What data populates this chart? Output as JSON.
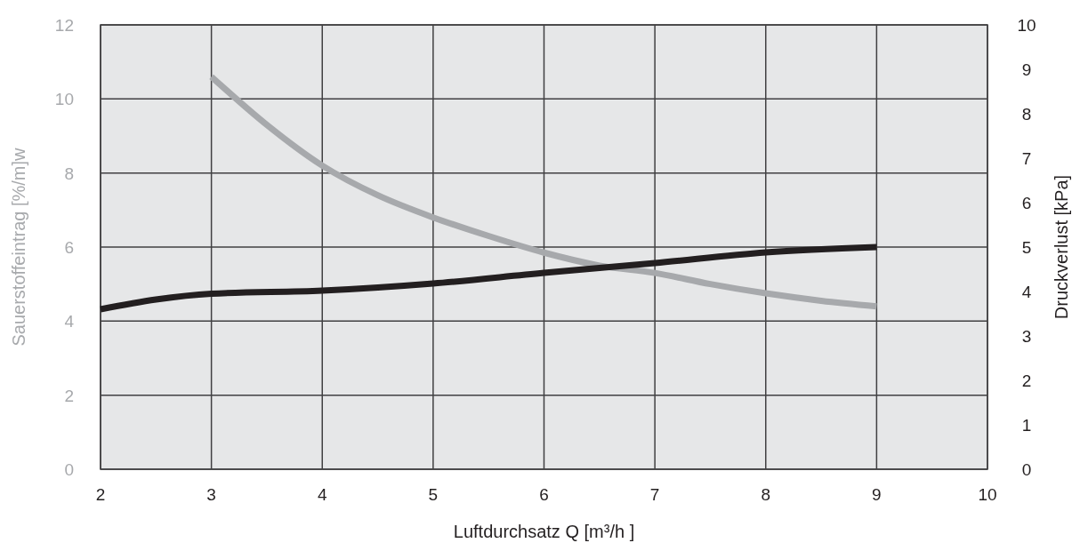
{
  "chart_data": {
    "type": "line",
    "xlabel": "Luftdurchsatz Q [m³/h ]",
    "ylabel": "Sauerstoffeintrag [%/m]w",
    "y2label": "Druckverlust [kPa]",
    "xlim": [
      2,
      10
    ],
    "xticks": [
      2,
      3,
      4,
      5,
      6,
      7,
      8,
      9,
      10
    ],
    "ylim": [
      0,
      12
    ],
    "yticks": [
      0,
      2,
      4,
      6,
      8,
      10,
      12
    ],
    "y2lim": [
      0,
      10
    ],
    "y2ticks": [
      0,
      1,
      2,
      3,
      4,
      5,
      6,
      7,
      8,
      9,
      10
    ],
    "grid": true,
    "marker": "none",
    "line_style": "solid",
    "series": [
      {
        "color": "#a7a9ac",
        "x": [
          3,
          3.5,
          4,
          4.5,
          5,
          5.5,
          6,
          6.5,
          7,
          7.5,
          8,
          8.5,
          9
        ],
        "values": [
          10.6,
          9.3,
          8.2,
          7.4,
          6.8,
          6.3,
          5.85,
          5.5,
          5.3,
          5.0,
          4.75,
          4.55,
          4.4
        ]
      },
      {
        "color": "#231f20",
        "axis": "y2",
        "x": [
          2,
          2.5,
          3,
          4,
          5,
          6,
          7,
          8,
          9
        ],
        "values": [
          3.6,
          3.82,
          3.95,
          4.02,
          4.18,
          4.42,
          4.64,
          4.88,
          5.0
        ]
      }
    ]
  }
}
